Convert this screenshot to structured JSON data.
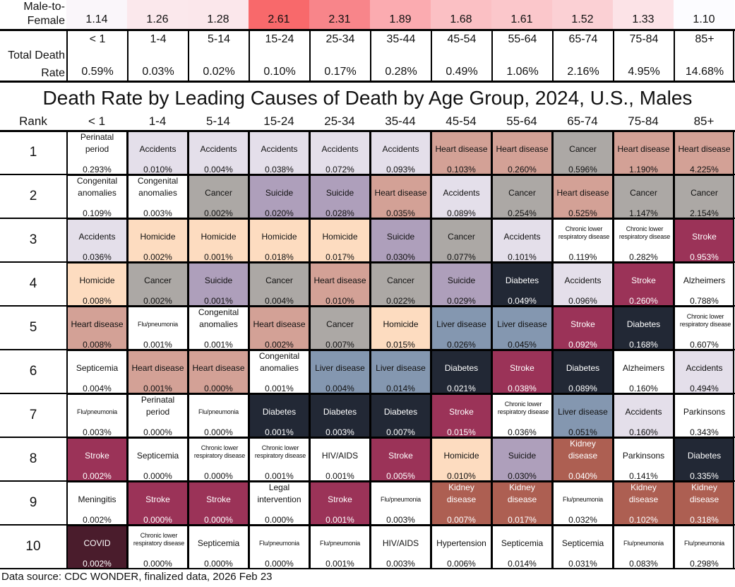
{
  "male_to_female": {
    "label": "Male-to-Female",
    "values": [
      "1.14",
      "1.26",
      "1.28",
      "2.61",
      "2.31",
      "1.89",
      "1.68",
      "1.61",
      "1.52",
      "1.33",
      "1.10"
    ],
    "colors": [
      "#faf6fa",
      "#fbe8ec",
      "#fbe7eb",
      "#f8696b",
      "#f8858a",
      "#fbabb0",
      "#fbc0c4",
      "#fbc7cb",
      "#fbd0d4",
      "#fce3e7",
      "#fcfcff"
    ]
  },
  "total_death_rate": {
    "label": "Total Death Rate",
    "values": [
      "0.59%",
      "0.03%",
      "0.02%",
      "0.10%",
      "0.17%",
      "0.28%",
      "0.49%",
      "1.06%",
      "2.16%",
      "4.95%",
      "14.68%"
    ]
  },
  "age_groups": [
    "< 1",
    "1-4",
    "5-14",
    "15-24",
    "25-34",
    "35-44",
    "45-54",
    "55-64",
    "65-74",
    "75-84",
    "85+"
  ],
  "title": "Death Rate by Leading Causes of Death by Age Group, 2024, U.S., Males",
  "rank_header": "Rank",
  "footer": "Data source: CDC WONDER, finalized data, 2026 Feb 23",
  "cause_colors": {
    "Accidents": "#e4dfea",
    "Heart disease": "#d3a196",
    "Cancer": "#aca8a5",
    "Suicide": "#ae9fbb",
    "Homicide": "#fddcc0",
    "Diabetes": "#222835",
    "Liver disease": "#8497b0",
    "Stroke": "#9b3358",
    "Kidney disease": "#ad5f52",
    "COVID": "#4a1c2c"
  },
  "dark_causes": [
    "Diabetes",
    "Stroke",
    "Kidney disease",
    "COVID"
  ],
  "small_causes": [
    "Flu/pneumonia",
    "Chronic lower respiratory disease"
  ],
  "chart_data": {
    "type": "table",
    "title": "Death Rate by Leading Causes of Death by Age Group, 2024, U.S., Males",
    "columns": [
      "< 1",
      "1-4",
      "5-14",
      "15-24",
      "25-34",
      "35-44",
      "45-54",
      "55-64",
      "65-74",
      "75-84",
      "85+"
    ],
    "rows": [
      {
        "rank": "1",
        "cells": [
          [
            "Perinatal period",
            "0.293%"
          ],
          [
            "Accidents",
            "0.010%"
          ],
          [
            "Accidents",
            "0.004%"
          ],
          [
            "Accidents",
            "0.038%"
          ],
          [
            "Accidents",
            "0.072%"
          ],
          [
            "Accidents",
            "0.093%"
          ],
          [
            "Heart disease",
            "0.103%"
          ],
          [
            "Heart disease",
            "0.260%"
          ],
          [
            "Cancer",
            "0.596%"
          ],
          [
            "Heart disease",
            "1.190%"
          ],
          [
            "Heart disease",
            "4.225%"
          ]
        ]
      },
      {
        "rank": "2",
        "cells": [
          [
            "Congenital anomalies",
            "0.109%"
          ],
          [
            "Congenital anomalies",
            "0.003%"
          ],
          [
            "Cancer",
            "0.002%"
          ],
          [
            "Suicide",
            "0.020%"
          ],
          [
            "Suicide",
            "0.028%"
          ],
          [
            "Heart disease",
            "0.035%"
          ],
          [
            "Accidents",
            "0.089%"
          ],
          [
            "Cancer",
            "0.254%"
          ],
          [
            "Heart disease",
            "0.525%"
          ],
          [
            "Cancer",
            "1.147%"
          ],
          [
            "Cancer",
            "2.154%"
          ]
        ]
      },
      {
        "rank": "3",
        "cells": [
          [
            "Accidents",
            "0.036%"
          ],
          [
            "Homicide",
            "0.002%"
          ],
          [
            "Homicide",
            "0.001%"
          ],
          [
            "Homicide",
            "0.018%"
          ],
          [
            "Homicide",
            "0.017%"
          ],
          [
            "Suicide",
            "0.030%"
          ],
          [
            "Cancer",
            "0.077%"
          ],
          [
            "Accidents",
            "0.101%"
          ],
          [
            "Chronic lower respiratory disease",
            "0.119%"
          ],
          [
            "Chronic lower respiratory disease",
            "0.282%"
          ],
          [
            "Stroke",
            "0.953%"
          ]
        ]
      },
      {
        "rank": "4",
        "cells": [
          [
            "Homicide",
            "0.008%"
          ],
          [
            "Cancer",
            "0.002%"
          ],
          [
            "Suicide",
            "0.001%"
          ],
          [
            "Cancer",
            "0.004%"
          ],
          [
            "Heart disease",
            "0.010%"
          ],
          [
            "Cancer",
            "0.022%"
          ],
          [
            "Suicide",
            "0.029%"
          ],
          [
            "Diabetes",
            "0.049%"
          ],
          [
            "Accidents",
            "0.096%"
          ],
          [
            "Stroke",
            "0.260%"
          ],
          [
            "Alzheimers",
            "0.788%"
          ]
        ]
      },
      {
        "rank": "5",
        "cells": [
          [
            "Heart disease",
            "0.008%"
          ],
          [
            "Flu/pneumonia",
            "0.001%"
          ],
          [
            "Congenital anomalies",
            "0.001%"
          ],
          [
            "Heart disease",
            "0.002%"
          ],
          [
            "Cancer",
            "0.007%"
          ],
          [
            "Homicide",
            "0.015%"
          ],
          [
            "Liver disease",
            "0.026%"
          ],
          [
            "Liver disease",
            "0.045%"
          ],
          [
            "Stroke",
            "0.092%"
          ],
          [
            "Diabetes",
            "0.168%"
          ],
          [
            "Chronic lower respiratory disease",
            "0.607%"
          ]
        ]
      },
      {
        "rank": "6",
        "cells": [
          [
            "Septicemia",
            "0.004%"
          ],
          [
            "Heart disease",
            "0.001%"
          ],
          [
            "Heart disease",
            "0.000%"
          ],
          [
            "Congenital anomalies",
            "0.001%"
          ],
          [
            "Liver disease",
            "0.004%"
          ],
          [
            "Liver disease",
            "0.014%"
          ],
          [
            "Diabetes",
            "0.021%"
          ],
          [
            "Stroke",
            "0.038%"
          ],
          [
            "Diabetes",
            "0.089%"
          ],
          [
            "Alzheimers",
            "0.160%"
          ],
          [
            "Accidents",
            "0.494%"
          ]
        ]
      },
      {
        "rank": "7",
        "cells": [
          [
            "Flu/pneumonia",
            "0.003%"
          ],
          [
            "Perinatal period",
            "0.000%"
          ],
          [
            "Flu/pneumonia",
            "0.000%"
          ],
          [
            "Diabetes",
            "0.001%"
          ],
          [
            "Diabetes",
            "0.003%"
          ],
          [
            "Diabetes",
            "0.007%"
          ],
          [
            "Stroke",
            "0.015%"
          ],
          [
            "Chronic lower respiratory disease",
            "0.036%"
          ],
          [
            "Liver disease",
            "0.051%"
          ],
          [
            "Accidents",
            "0.160%"
          ],
          [
            "Parkinsons",
            "0.343%"
          ]
        ]
      },
      {
        "rank": "8",
        "cells": [
          [
            "Stroke",
            "0.002%"
          ],
          [
            "Septicemia",
            "0.000%"
          ],
          [
            "Chronic lower respiratory disease",
            "0.000%"
          ],
          [
            "Chronic lower respiratory disease",
            "0.001%"
          ],
          [
            "HIV/AIDS",
            "0.001%"
          ],
          [
            "Stroke",
            "0.005%"
          ],
          [
            "Homicide",
            "0.010%"
          ],
          [
            "Suicide",
            "0.030%"
          ],
          [
            "Kidney disease",
            "0.040%"
          ],
          [
            "Parkinsons",
            "0.141%"
          ],
          [
            "Diabetes",
            "0.335%"
          ]
        ]
      },
      {
        "rank": "9",
        "cells": [
          [
            "Meningitis",
            "0.002%"
          ],
          [
            "Stroke",
            "0.000%"
          ],
          [
            "Stroke",
            "0.000%"
          ],
          [
            "Legal intervention",
            "0.000%"
          ],
          [
            "Stroke",
            "0.001%"
          ],
          [
            "Flu/pneumonia",
            "0.003%"
          ],
          [
            "Kidney disease",
            "0.007%"
          ],
          [
            "Kidney disease",
            "0.017%"
          ],
          [
            "Flu/pneumonia",
            "0.032%"
          ],
          [
            "Kidney disease",
            "0.102%"
          ],
          [
            "Kidney disease",
            "0.318%"
          ]
        ]
      },
      {
        "rank": "10",
        "cells": [
          [
            "COVID",
            "0.002%"
          ],
          [
            "Chronic lower respiratory disease",
            "0.000%"
          ],
          [
            "Septicemia",
            "0.000%"
          ],
          [
            "Flu/pneumonia",
            "0.000%"
          ],
          [
            "Flu/pneumonia",
            "0.001%"
          ],
          [
            "HIV/AIDS",
            "0.003%"
          ],
          [
            "Hypertension",
            "0.006%"
          ],
          [
            "Septicemia",
            "0.014%"
          ],
          [
            "Septicemia",
            "0.031%"
          ],
          [
            "Flu/pneumonia",
            "0.083%"
          ],
          [
            "Flu/pneumonia",
            "0.298%"
          ]
        ]
      }
    ]
  }
}
